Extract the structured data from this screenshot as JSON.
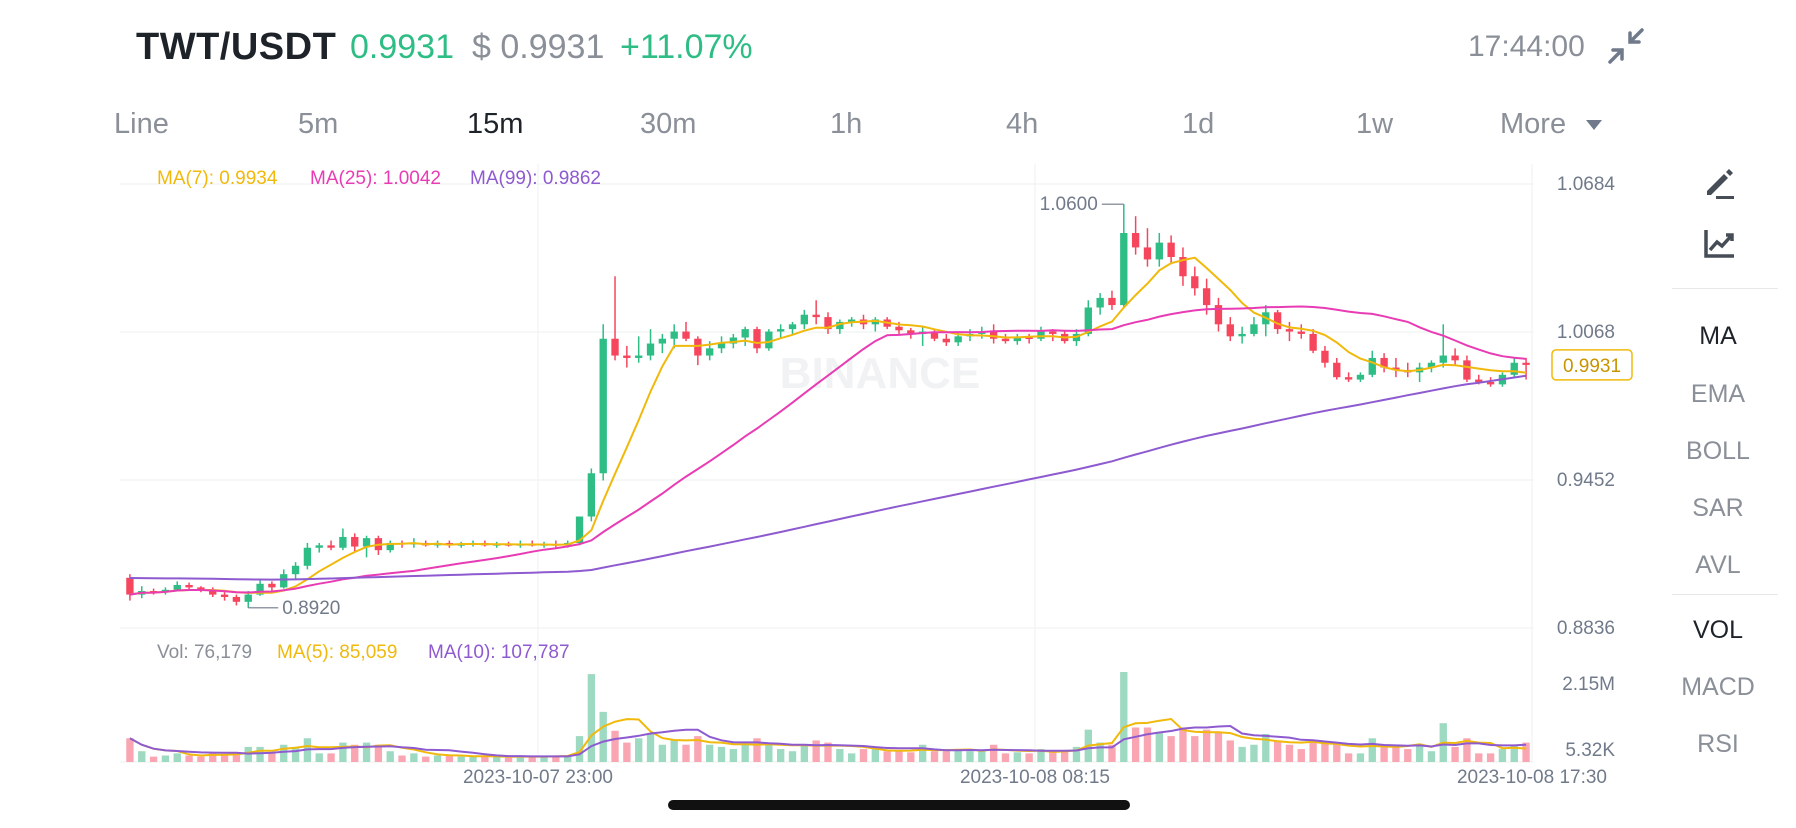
{
  "header": {
    "pair": "TWT/USDT",
    "last_price": "0.9931",
    "usd_price": "$ 0.9931",
    "change": "+11.07%",
    "time": "17:44:00",
    "up_color": "#2ebd85",
    "down_color": "#f6465d"
  },
  "timeframes": {
    "items": [
      "Line",
      "5m",
      "15m",
      "30m",
      "1h",
      "4h",
      "1d",
      "1w",
      "More"
    ],
    "active": "15m"
  },
  "indicators": {
    "ma7_label": "MA(7): 0.9934",
    "ma25_label": "MA(25): 1.0042",
    "ma99_label": "MA(99): 0.9862",
    "vol_label": "Vol: 76,179",
    "vol_ma5_label": "MA(5): 85,059",
    "vol_ma10_label": "MA(10): 107,787",
    "ma7_color": "#f0b90b",
    "ma25_color": "#e83cb4",
    "ma99_color": "#8e5ad0"
  },
  "side_panel": {
    "draw_icon": "pencil-icon",
    "indicator_icon": "line-chart-icon",
    "main_items": [
      "MA",
      "EMA",
      "BOLL",
      "SAR",
      "AVL"
    ],
    "main_active": "MA",
    "sub_items": [
      "VOL",
      "MACD",
      "RSI"
    ],
    "sub_active": "VOL"
  },
  "watermark": "BINANCE",
  "chart_data": {
    "type": "candlestick",
    "interval": "15m",
    "price_axis_ticks": [
      "1.0684",
      "1.0068",
      "0.9452",
      "0.8836"
    ],
    "price_range": [
      0.8836,
      1.0684
    ],
    "volume_axis_ticks": [
      "2.15M",
      "5.32K"
    ],
    "volume_range": [
      5320,
      2150000
    ],
    "x_ticks": [
      "2023-10-07 23:00",
      "2023-10-08 08:15",
      "2023-10-08 17:30"
    ],
    "high_marker": "1.0600",
    "low_marker": "0.8920",
    "current_price_tag": "0.9931",
    "candles": [
      {
        "o": 0.9045,
        "h": 0.906,
        "l": 0.895,
        "c": 0.8975
      },
      {
        "o": 0.8975,
        "h": 0.901,
        "l": 0.896,
        "c": 0.899
      },
      {
        "o": 0.899,
        "h": 0.9,
        "l": 0.8975,
        "c": 0.8985
      },
      {
        "o": 0.8985,
        "h": 0.9005,
        "l": 0.8975,
        "c": 0.8995
      },
      {
        "o": 0.8995,
        "h": 0.903,
        "l": 0.899,
        "c": 0.9015
      },
      {
        "o": 0.9015,
        "h": 0.9025,
        "l": 0.8995,
        "c": 0.9005
      },
      {
        "o": 0.9005,
        "h": 0.901,
        "l": 0.8985,
        "c": 0.8995
      },
      {
        "o": 0.8995,
        "h": 0.9005,
        "l": 0.8965,
        "c": 0.8975
      },
      {
        "o": 0.8975,
        "h": 0.8985,
        "l": 0.895,
        "c": 0.8965
      },
      {
        "o": 0.8965,
        "h": 0.8975,
        "l": 0.893,
        "c": 0.8945
      },
      {
        "o": 0.8945,
        "h": 0.899,
        "l": 0.892,
        "c": 0.8975
      },
      {
        "o": 0.8975,
        "h": 0.904,
        "l": 0.897,
        "c": 0.902
      },
      {
        "o": 0.902,
        "h": 0.903,
        "l": 0.899,
        "c": 0.9005
      },
      {
        "o": 0.9005,
        "h": 0.908,
        "l": 0.9,
        "c": 0.906
      },
      {
        "o": 0.906,
        "h": 0.911,
        "l": 0.904,
        "c": 0.9095
      },
      {
        "o": 0.9095,
        "h": 0.919,
        "l": 0.908,
        "c": 0.917
      },
      {
        "o": 0.917,
        "h": 0.919,
        "l": 0.915,
        "c": 0.918
      },
      {
        "o": 0.918,
        "h": 0.92,
        "l": 0.916,
        "c": 0.917
      },
      {
        "o": 0.917,
        "h": 0.925,
        "l": 0.916,
        "c": 0.9215
      },
      {
        "o": 0.9215,
        "h": 0.923,
        "l": 0.915,
        "c": 0.9175
      },
      {
        "o": 0.9175,
        "h": 0.922,
        "l": 0.913,
        "c": 0.921
      },
      {
        "o": 0.921,
        "h": 0.922,
        "l": 0.914,
        "c": 0.916
      },
      {
        "o": 0.916,
        "h": 0.92,
        "l": 0.915,
        "c": 0.919
      },
      {
        "o": 0.919,
        "h": 0.92,
        "l": 0.917,
        "c": 0.9185
      },
      {
        "o": 0.9185,
        "h": 0.921,
        "l": 0.917,
        "c": 0.919
      },
      {
        "o": 0.919,
        "h": 0.92,
        "l": 0.9175,
        "c": 0.918
      },
      {
        "o": 0.918,
        "h": 0.92,
        "l": 0.917,
        "c": 0.919
      },
      {
        "o": 0.919,
        "h": 0.92,
        "l": 0.917,
        "c": 0.918
      },
      {
        "o": 0.918,
        "h": 0.9195,
        "l": 0.917,
        "c": 0.9185
      },
      {
        "o": 0.9185,
        "h": 0.92,
        "l": 0.9175,
        "c": 0.919
      },
      {
        "o": 0.919,
        "h": 0.92,
        "l": 0.9175,
        "c": 0.918
      },
      {
        "o": 0.918,
        "h": 0.9195,
        "l": 0.917,
        "c": 0.9185
      },
      {
        "o": 0.9185,
        "h": 0.9195,
        "l": 0.9175,
        "c": 0.918
      },
      {
        "o": 0.918,
        "h": 0.92,
        "l": 0.917,
        "c": 0.9185
      },
      {
        "o": 0.9185,
        "h": 0.92,
        "l": 0.9175,
        "c": 0.918
      },
      {
        "o": 0.918,
        "h": 0.9195,
        "l": 0.917,
        "c": 0.9185
      },
      {
        "o": 0.9185,
        "h": 0.92,
        "l": 0.917,
        "c": 0.918
      },
      {
        "o": 0.918,
        "h": 0.92,
        "l": 0.917,
        "c": 0.919
      },
      {
        "o": 0.919,
        "h": 0.93,
        "l": 0.918,
        "c": 0.93
      },
      {
        "o": 0.93,
        "h": 0.95,
        "l": 0.928,
        "c": 0.948
      },
      {
        "o": 0.948,
        "h": 1.01,
        "l": 0.945,
        "c": 1.004
      },
      {
        "o": 1.004,
        "h": 1.03,
        "l": 0.995,
        "c": 0.997
      },
      {
        "o": 0.997,
        "h": 1.001,
        "l": 0.992,
        "c": 0.996
      },
      {
        "o": 0.996,
        "h": 1.005,
        "l": 0.994,
        "c": 0.997
      },
      {
        "o": 0.997,
        "h": 1.008,
        "l": 0.995,
        "c": 1.002
      },
      {
        "o": 1.002,
        "h": 1.006,
        "l": 0.998,
        "c": 1.004
      },
      {
        "o": 1.004,
        "h": 1.01,
        "l": 1.0,
        "c": 1.007
      },
      {
        "o": 1.007,
        "h": 1.011,
        "l": 1.003,
        "c": 1.004
      },
      {
        "o": 1.004,
        "h": 1.005,
        "l": 0.993,
        "c": 0.997
      },
      {
        "o": 0.997,
        "h": 1.003,
        "l": 0.995,
        "c": 1.0
      },
      {
        "o": 1.0,
        "h": 1.005,
        "l": 0.998,
        "c": 1.002
      },
      {
        "o": 1.002,
        "h": 1.006,
        "l": 1.0,
        "c": 1.0045
      },
      {
        "o": 1.0045,
        "h": 1.009,
        "l": 1.001,
        "c": 1.008
      },
      {
        "o": 1.008,
        "h": 1.009,
        "l": 0.998,
        "c": 1.0
      },
      {
        "o": 1.0,
        "h": 1.008,
        "l": 0.999,
        "c": 1.007
      },
      {
        "o": 1.007,
        "h": 1.01,
        "l": 1.004,
        "c": 1.008
      },
      {
        "o": 1.008,
        "h": 1.011,
        "l": 1.006,
        "c": 1.01
      },
      {
        "o": 1.01,
        "h": 1.016,
        "l": 1.008,
        "c": 1.014
      },
      {
        "o": 1.014,
        "h": 1.02,
        "l": 1.01,
        "c": 1.013
      },
      {
        "o": 1.013,
        "h": 1.015,
        "l": 1.006,
        "c": 1.008
      },
      {
        "o": 1.008,
        "h": 1.012,
        "l": 1.006,
        "c": 1.011
      },
      {
        "o": 1.011,
        "h": 1.013,
        "l": 1.009,
        "c": 1.012
      },
      {
        "o": 1.012,
        "h": 1.014,
        "l": 1.008,
        "c": 1.01
      },
      {
        "o": 1.01,
        "h": 1.013,
        "l": 1.007,
        "c": 1.012
      },
      {
        "o": 1.012,
        "h": 1.013,
        "l": 1.008,
        "c": 1.009
      },
      {
        "o": 1.009,
        "h": 1.011,
        "l": 1.006,
        "c": 1.0075
      },
      {
        "o": 1.0075,
        "h": 1.0085,
        "l": 1.004,
        "c": 1.006
      },
      {
        "o": 1.006,
        "h": 1.009,
        "l": 1.001,
        "c": 1.007
      },
      {
        "o": 1.007,
        "h": 1.008,
        "l": 1.003,
        "c": 1.004
      },
      {
        "o": 1.004,
        "h": 1.006,
        "l": 1.001,
        "c": 1.0025
      },
      {
        "o": 1.0025,
        "h": 1.007,
        "l": 1.001,
        "c": 1.005
      },
      {
        "o": 1.005,
        "h": 1.008,
        "l": 1.003,
        "c": 1.006
      },
      {
        "o": 1.006,
        "h": 1.009,
        "l": 1.004,
        "c": 1.007
      },
      {
        "o": 1.007,
        "h": 1.01,
        "l": 1.002,
        "c": 1.004
      },
      {
        "o": 1.004,
        "h": 1.006,
        "l": 1.002,
        "c": 1.003
      },
      {
        "o": 1.003,
        "h": 1.006,
        "l": 1.0015,
        "c": 1.0045
      },
      {
        "o": 1.0045,
        "h": 1.006,
        "l": 1.002,
        "c": 1.004
      },
      {
        "o": 1.004,
        "h": 1.009,
        "l": 1.003,
        "c": 1.007
      },
      {
        "o": 1.007,
        "h": 1.008,
        "l": 1.003,
        "c": 1.006
      },
      {
        "o": 1.006,
        "h": 1.007,
        "l": 1.002,
        "c": 1.003
      },
      {
        "o": 1.003,
        "h": 1.008,
        "l": 1.001,
        "c": 1.006
      },
      {
        "o": 1.006,
        "h": 1.02,
        "l": 1.005,
        "c": 1.017
      },
      {
        "o": 1.017,
        "h": 1.023,
        "l": 1.014,
        "c": 1.021
      },
      {
        "o": 1.021,
        "h": 1.024,
        "l": 1.016,
        "c": 1.018
      },
      {
        "o": 1.018,
        "h": 1.06,
        "l": 1.017,
        "c": 1.048
      },
      {
        "o": 1.048,
        "h": 1.055,
        "l": 1.039,
        "c": 1.042
      },
      {
        "o": 1.042,
        "h": 1.05,
        "l": 1.034,
        "c": 1.037
      },
      {
        "o": 1.037,
        "h": 1.048,
        "l": 1.034,
        "c": 1.044
      },
      {
        "o": 1.044,
        "h": 1.047,
        "l": 1.035,
        "c": 1.038
      },
      {
        "o": 1.038,
        "h": 1.042,
        "l": 1.026,
        "c": 1.03
      },
      {
        "o": 1.03,
        "h": 1.034,
        "l": 1.022,
        "c": 1.025
      },
      {
        "o": 1.025,
        "h": 1.029,
        "l": 1.014,
        "c": 1.018
      },
      {
        "o": 1.018,
        "h": 1.021,
        "l": 1.007,
        "c": 1.01
      },
      {
        "o": 1.01,
        "h": 1.013,
        "l": 1.003,
        "c": 1.005
      },
      {
        "o": 1.005,
        "h": 1.009,
        "l": 1.002,
        "c": 1.006
      },
      {
        "o": 1.006,
        "h": 1.013,
        "l": 1.005,
        "c": 1.01
      },
      {
        "o": 1.01,
        "h": 1.018,
        "l": 1.005,
        "c": 1.015
      },
      {
        "o": 1.015,
        "h": 1.016,
        "l": 1.006,
        "c": 1.008
      },
      {
        "o": 1.008,
        "h": 1.011,
        "l": 1.003,
        "c": 1.007
      },
      {
        "o": 1.007,
        "h": 1.01,
        "l": 1.004,
        "c": 1.006
      },
      {
        "o": 1.006,
        "h": 1.008,
        "l": 0.998,
        "c": 0.999
      },
      {
        "o": 0.999,
        "h": 1.001,
        "l": 0.992,
        "c": 0.994
      },
      {
        "o": 0.994,
        "h": 0.996,
        "l": 0.987,
        "c": 0.988
      },
      {
        "o": 0.988,
        "h": 0.99,
        "l": 0.986,
        "c": 0.987
      },
      {
        "o": 0.987,
        "h": 0.99,
        "l": 0.986,
        "c": 0.989
      },
      {
        "o": 0.989,
        "h": 0.999,
        "l": 0.988,
        "c": 0.996
      },
      {
        "o": 0.996,
        "h": 0.998,
        "l": 0.99,
        "c": 0.992
      },
      {
        "o": 0.992,
        "h": 0.996,
        "l": 0.988,
        "c": 0.991
      },
      {
        "o": 0.991,
        "h": 0.994,
        "l": 0.988,
        "c": 0.99
      },
      {
        "o": 0.99,
        "h": 0.994,
        "l": 0.986,
        "c": 0.992
      },
      {
        "o": 0.992,
        "h": 0.995,
        "l": 0.99,
        "c": 0.994
      },
      {
        "o": 0.994,
        "h": 1.01,
        "l": 0.992,
        "c": 0.997
      },
      {
        "o": 0.997,
        "h": 1.0,
        "l": 0.993,
        "c": 0.995
      },
      {
        "o": 0.995,
        "h": 0.997,
        "l": 0.986,
        "c": 0.987
      },
      {
        "o": 0.987,
        "h": 0.989,
        "l": 0.985,
        "c": 0.986
      },
      {
        "o": 0.986,
        "h": 0.988,
        "l": 0.984,
        "c": 0.985
      },
      {
        "o": 0.985,
        "h": 0.99,
        "l": 0.984,
        "c": 0.989
      },
      {
        "o": 0.989,
        "h": 0.996,
        "l": 0.988,
        "c": 0.994
      },
      {
        "o": 0.994,
        "h": 0.996,
        "l": 0.987,
        "c": 0.9931
      }
    ]
  }
}
